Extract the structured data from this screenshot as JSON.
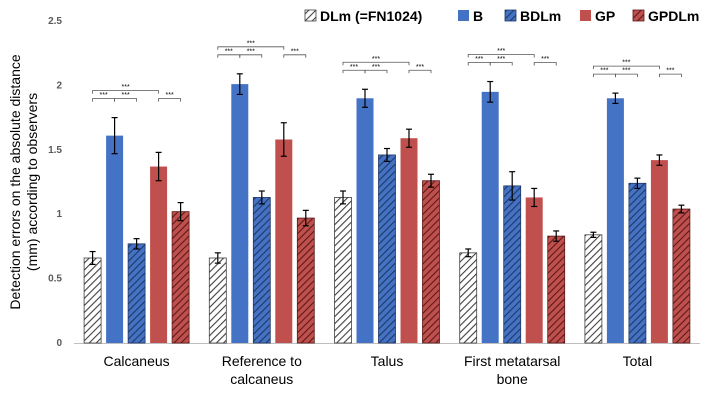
{
  "chart_data": {
    "type": "bar",
    "title": "",
    "xlabel": "",
    "ylabel_lines": [
      "Detection errors on the absolute distance",
      "(mm) according to observers"
    ],
    "ylim": [
      0,
      2.5
    ],
    "yticks": [
      "0",
      "0.5",
      "1",
      "1.5",
      "2",
      "2.5"
    ],
    "ytick_values": [
      0,
      0.5,
      1,
      1.5,
      2,
      2.5
    ],
    "grid": false,
    "legend_position": "top",
    "categories": [
      {
        "lines": [
          "Calcaneus"
        ]
      },
      {
        "lines": [
          "Reference to",
          "calcaneus"
        ]
      },
      {
        "lines": [
          "Talus"
        ]
      },
      {
        "lines": [
          "First metatarsal",
          "bone"
        ]
      },
      {
        "lines": [
          "Total"
        ]
      }
    ],
    "series": [
      {
        "name": "DLm (=FN1024)",
        "color": "#ffffff",
        "hatch": true,
        "hatchColor": "#404040",
        "values": [
          0.66,
          0.66,
          1.13,
          0.7,
          0.84
        ],
        "errors": [
          0.05,
          0.04,
          0.05,
          0.03,
          0.02
        ]
      },
      {
        "name": "B",
        "color": "#4472c4",
        "hatch": false,
        "values": [
          1.61,
          2.01,
          1.9,
          1.95,
          1.9
        ],
        "errors": [
          0.14,
          0.08,
          0.07,
          0.08,
          0.04
        ]
      },
      {
        "name": "BDLm",
        "color": "#4472c4",
        "hatch": true,
        "hatchColor": "#1f3864",
        "values": [
          0.77,
          1.13,
          1.46,
          1.22,
          1.24
        ],
        "errors": [
          0.04,
          0.05,
          0.05,
          0.11,
          0.04
        ]
      },
      {
        "name": "GP",
        "color": "#c0504d",
        "hatch": false,
        "values": [
          1.37,
          1.58,
          1.59,
          1.13,
          1.42
        ],
        "errors": [
          0.11,
          0.13,
          0.07,
          0.07,
          0.04
        ]
      },
      {
        "name": "GPDLm",
        "color": "#c0504d",
        "hatch": true,
        "hatchColor": "#5a1a18",
        "values": [
          1.02,
          0.97,
          1.26,
          0.83,
          1.04
        ],
        "errors": [
          0.07,
          0.06,
          0.05,
          0.04,
          0.03
        ]
      }
    ],
    "significance": {
      "label": "***",
      "brackets": [
        [
          0,
          1
        ],
        [
          1,
          2
        ],
        [
          0,
          3
        ],
        [
          3,
          4
        ]
      ]
    }
  }
}
